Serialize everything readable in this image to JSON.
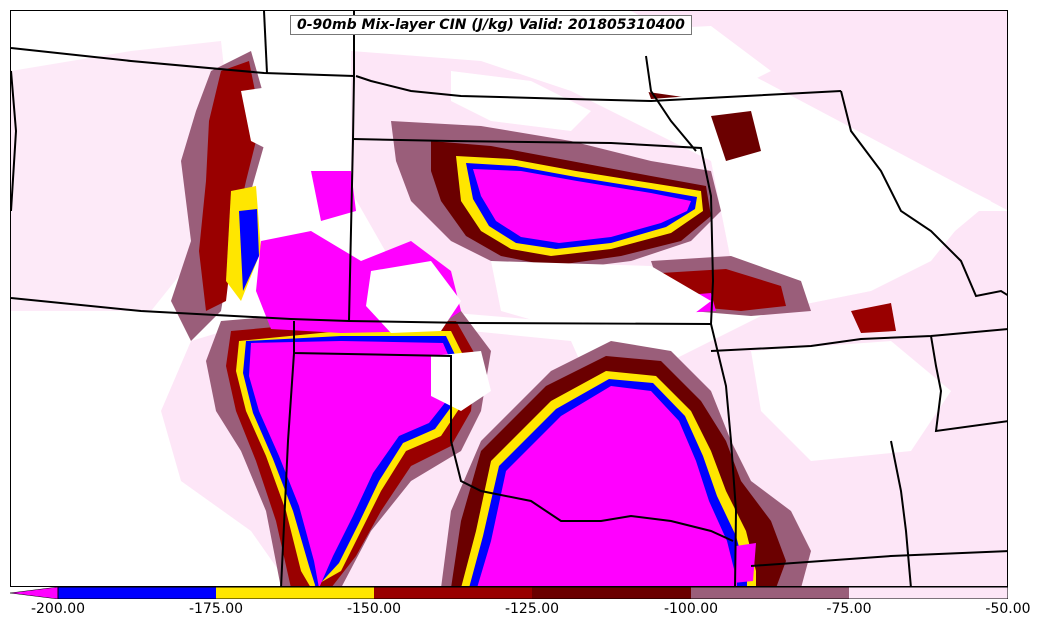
{
  "title": "0-90mb Mix-layer CIN (J/kg) Valid: 201805310400",
  "colorbar": {
    "ticks": [
      "-200.00",
      "-175.00",
      "-150.00",
      "-125.00",
      "-100.00",
      "-75.00",
      "-50.00"
    ],
    "colors": {
      "lt_-200": "#ff00ff",
      "-200_-175": "#0000ff",
      "-175_-150": "#ffe600",
      "-150_-125": "#990000",
      "-125_-100": "#6b0000",
      "-100_-75": "#9a5e7a",
      "-75_-50": "#fde6f7"
    }
  },
  "map_colors": {
    "land": "#ffffff",
    "borders": "#000000"
  }
}
